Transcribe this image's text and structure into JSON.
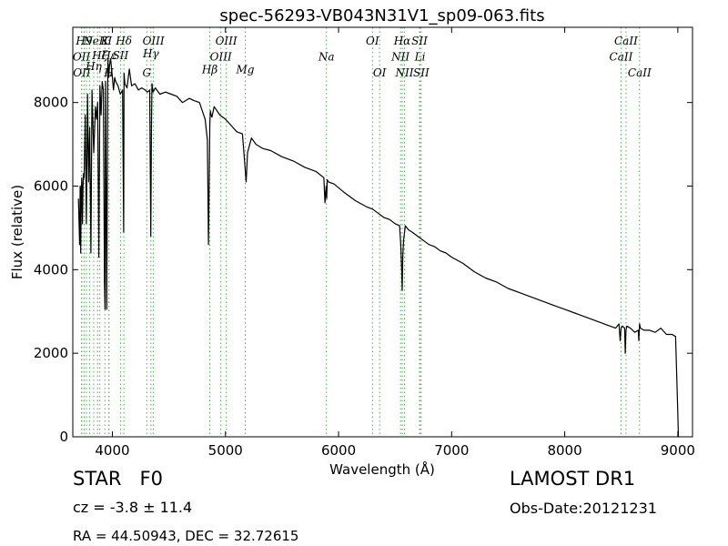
{
  "chart_data": {
    "type": "line",
    "title": "spec-56293-VB043N31V1_sp09-063.fits",
    "xlabel": "Wavelength (Å)",
    "ylabel": "Flux (relative)",
    "xlim": [
      3650,
      9130
    ],
    "ylim": [
      0,
      9800
    ],
    "xticks": [
      4000,
      5000,
      6000,
      7000,
      8000,
      9000
    ],
    "yticks": [
      0,
      2000,
      4000,
      6000,
      8000
    ],
    "grid": false,
    "legend": "none",
    "series": [
      {
        "color": "#000000",
        "x": [
          3700,
          3710,
          3715,
          3720,
          3725,
          3730,
          3735,
          3740,
          3745,
          3750,
          3760,
          3770,
          3780,
          3790,
          3800,
          3810,
          3820,
          3835,
          3850,
          3860,
          3870,
          3880,
          3890,
          3900,
          3910,
          3920,
          3930,
          3935,
          3940,
          3950,
          3960,
          3968,
          3975,
          3985,
          4000,
          4010,
          4020,
          4030,
          4050,
          4070,
          4090,
          4100,
          4103,
          4110,
          4130,
          4150,
          4170,
          4200,
          4230,
          4260,
          4290,
          4310,
          4330,
          4340,
          4345,
          4350,
          4360,
          4380,
          4420,
          4470,
          4520,
          4570,
          4620,
          4680,
          4720,
          4770,
          4820,
          4840,
          4850,
          4857,
          4862,
          4867,
          4873,
          4880,
          4900,
          4950,
          5000,
          5050,
          5100,
          5150,
          5172,
          5183,
          5195,
          5230,
          5270,
          5330,
          5400,
          5500,
          5600,
          5700,
          5800,
          5870,
          5880,
          5890,
          5895,
          5900,
          5910,
          5960,
          6050,
          6150,
          6250,
          6300,
          6350,
          6400,
          6450,
          6500,
          6540,
          6550,
          6558,
          6563,
          6568,
          6575,
          6590,
          6620,
          6650,
          6700,
          6750,
          6800,
          6850,
          6900,
          6950,
          7000,
          7100,
          7200,
          7300,
          7400,
          7500,
          7600,
          7700,
          7800,
          7900,
          8000,
          8100,
          8200,
          8300,
          8400,
          8450,
          8480,
          8490,
          8498,
          8510,
          8530,
          8535,
          8542,
          8550,
          8580,
          8620,
          8650,
          8655,
          8662,
          8670,
          8700,
          8750,
          8800,
          8850,
          8900,
          8950,
          8980,
          8990,
          9000,
          9005,
          9010
        ],
        "y": [
          5700,
          4600,
          6000,
          4400,
          5900,
          6200,
          5100,
          6000,
          6300,
          6200,
          7700,
          5100,
          8200,
          6100,
          7400,
          4400,
          8300,
          6800,
          7900,
          7600,
          8000,
          4300,
          8400,
          7700,
          8500,
          8300,
          3700,
          3050,
          8500,
          3050,
          9050,
          8600,
          8900,
          9050,
          8600,
          8300,
          8600,
          8500,
          8400,
          8200,
          8300,
          4900,
          8700,
          8450,
          8350,
          8800,
          8400,
          8450,
          8300,
          8350,
          8300,
          8250,
          8300,
          4800,
          7300,
          8450,
          8250,
          8350,
          8200,
          8250,
          8200,
          8150,
          8000,
          8100,
          8050,
          8000,
          7600,
          7100,
          4600,
          6300,
          7500,
          7800,
          7700,
          7650,
          7900,
          7700,
          7600,
          7450,
          7300,
          7250,
          6500,
          6100,
          6800,
          7150,
          7000,
          6900,
          6850,
          6700,
          6600,
          6450,
          6350,
          6200,
          5600,
          6000,
          5700,
          6150,
          6100,
          6050,
          5850,
          5650,
          5500,
          5450,
          5350,
          5250,
          5200,
          5100,
          5050,
          4600,
          4000,
          3500,
          4300,
          4700,
          5050,
          4950,
          4900,
          4800,
          4700,
          4600,
          4550,
          4450,
          4400,
          4300,
          4150,
          3950,
          3800,
          3700,
          3550,
          3450,
          3350,
          3250,
          3150,
          3050,
          2950,
          2850,
          2750,
          2650,
          2600,
          2700,
          2300,
          2600,
          2650,
          2600,
          2000,
          2550,
          2650,
          2600,
          2500,
          2550,
          2300,
          2700,
          2600,
          2550,
          2550,
          2500,
          2600,
          2450,
          2450,
          2400,
          1500,
          600,
          0,
          0
        ]
      }
    ],
    "line_markers": [
      {
        "w": 3727,
        "label": "OII",
        "row": 1
      },
      {
        "w": 3730,
        "label": "OII",
        "row": 2
      },
      {
        "w": 3750,
        "label": "H9",
        "row": 0
      },
      {
        "w": 3771,
        "label": "",
        "row": 0
      },
      {
        "w": 3798,
        "label": "",
        "row": 0
      },
      {
        "w": 3835,
        "label": "Hη",
        "row": 1.6
      },
      {
        "w": 3869,
        "label": "NeIII",
        "row": 0
      },
      {
        "w": 3889,
        "label": "Hζ",
        "row": 0.9
      },
      {
        "w": 3933.7,
        "label": "K",
        "row": 0
      },
      {
        "w": 3968.5,
        "label": "H",
        "row": 2
      },
      {
        "w": 3970,
        "label": "Hε",
        "row": 0.9
      },
      {
        "w": 4072,
        "label": "SII",
        "row": 0.9
      },
      {
        "w": 4101.7,
        "label": "Hδ",
        "row": 0
      },
      {
        "w": 4304,
        "label": "G",
        "row": 2
      },
      {
        "w": 4340.5,
        "label": "Hγ",
        "row": 0.8
      },
      {
        "w": 4363,
        "label": "OIII",
        "row": 0
      },
      {
        "w": 4861.3,
        "label": "Hβ",
        "row": 1.8
      },
      {
        "w": 4959,
        "label": "OIII",
        "row": 1
      },
      {
        "w": 5007,
        "label": "OIII",
        "row": 0
      },
      {
        "w": 5175,
        "label": "Mg",
        "row": 1.8
      },
      {
        "w": 5893,
        "label": "Na",
        "row": 1
      },
      {
        "w": 6300,
        "label": "OI",
        "row": 0
      },
      {
        "w": 6363,
        "label": "OI",
        "row": 2
      },
      {
        "w": 6548,
        "label": "NII",
        "row": 1
      },
      {
        "w": 6563,
        "label": "Hα",
        "row": 0
      },
      {
        "w": 6583,
        "label": "NII",
        "row": 2
      },
      {
        "w": 6716,
        "label": "SII",
        "row": 0
      },
      {
        "w": 6720,
        "label": "Li",
        "row": 1
      },
      {
        "w": 6731,
        "label": "SII",
        "row": 2
      },
      {
        "w": 8498,
        "label": "CaII",
        "row": 1
      },
      {
        "w": 8542,
        "label": "CaII",
        "row": 0
      },
      {
        "w": 8662,
        "label": "CaII",
        "row": 2
      }
    ]
  },
  "info": {
    "object_type": "STAR   F0",
    "cz": "cz = -3.8 ± 11.4",
    "coords": "RA = 44.50943, DEC = 32.72615",
    "survey": "LAMOST DR1",
    "obs_date": "Obs-Date:20121231"
  }
}
